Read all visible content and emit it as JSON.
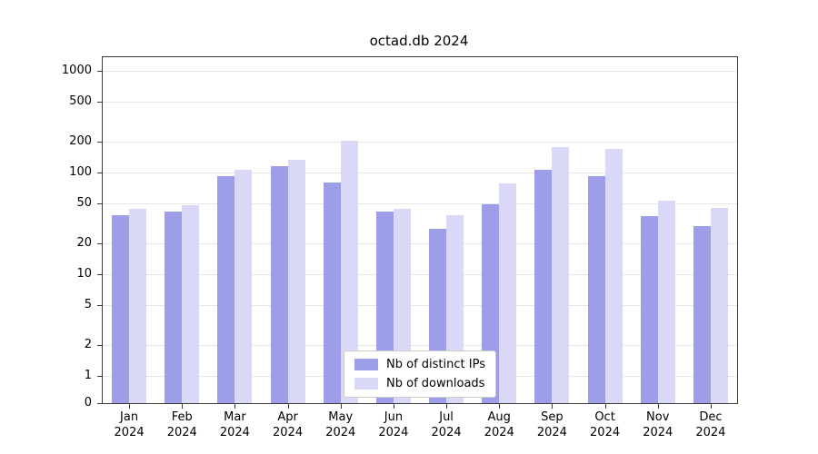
{
  "chart_data": {
    "type": "bar",
    "title": "octad.db 2024",
    "yscale": "symlog",
    "grid": true,
    "legend_position": "lower center",
    "ylim": [
      0,
      1000
    ],
    "yticks": [
      0,
      1,
      2,
      5,
      10,
      20,
      50,
      100,
      200,
      500,
      1000
    ],
    "categories": [
      {
        "month": "Jan",
        "year": "2024"
      },
      {
        "month": "Feb",
        "year": "2024"
      },
      {
        "month": "Mar",
        "year": "2024"
      },
      {
        "month": "Apr",
        "year": "2024"
      },
      {
        "month": "May",
        "year": "2024"
      },
      {
        "month": "Jun",
        "year": "2024"
      },
      {
        "month": "Jul",
        "year": "2024"
      },
      {
        "month": "Aug",
        "year": "2024"
      },
      {
        "month": "Sep",
        "year": "2024"
      },
      {
        "month": "Oct",
        "year": "2024"
      },
      {
        "month": "Nov",
        "year": "2024"
      },
      {
        "month": "Dec",
        "year": "2024"
      }
    ],
    "series": [
      {
        "name": "Nb of distinct IPs",
        "color": "#9e9ee8",
        "values": [
          38,
          41,
          93,
          115,
          80,
          41,
          28,
          49,
          107,
          92,
          37,
          30
        ]
      },
      {
        "name": "Nb of downloads",
        "color": "#d9d9f7",
        "values": [
          44,
          48,
          107,
          133,
          205,
          44,
          38,
          78,
          178,
          170,
          53,
          45
        ]
      }
    ]
  }
}
